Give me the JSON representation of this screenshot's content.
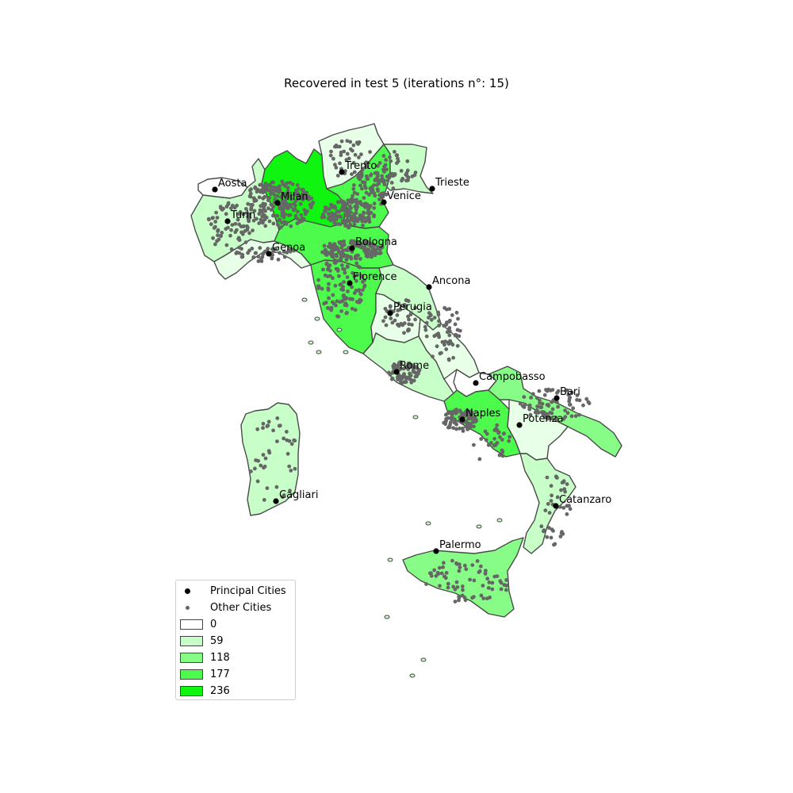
{
  "title": "Recovered in test 5 (iterations n°: 15)",
  "colors": {
    "bin0": "#ffffff",
    "bin1": "#c8fec8",
    "bin2": "#87fd87",
    "bin3": "#4cfb4c",
    "bin4": "#10f510",
    "light": "#e8ffe8",
    "principal_city": "#000000",
    "other_city": "#666666",
    "border": "#4a4a4a"
  },
  "regions": [
    {
      "name": "Aosta Valley",
      "bin": "bin0"
    },
    {
      "name": "Piedmont",
      "bin": "bin1"
    },
    {
      "name": "Lombardy",
      "bin": "bin4"
    },
    {
      "name": "Trentino",
      "bin": "light"
    },
    {
      "name": "Veneto",
      "bin": "bin3"
    },
    {
      "name": "Friuli",
      "bin": "bin1"
    },
    {
      "name": "Liguria",
      "bin": "light"
    },
    {
      "name": "Emilia-Romagna",
      "bin": "bin3"
    },
    {
      "name": "Tuscany",
      "bin": "bin3"
    },
    {
      "name": "Marche",
      "bin": "bin1"
    },
    {
      "name": "Umbria",
      "bin": "light"
    },
    {
      "name": "Lazio",
      "bin": "bin1"
    },
    {
      "name": "Abruzzo",
      "bin": "light"
    },
    {
      "name": "Molise",
      "bin": "bin0"
    },
    {
      "name": "Campania",
      "bin": "bin3"
    },
    {
      "name": "Apulia",
      "bin": "bin2"
    },
    {
      "name": "Basilicata",
      "bin": "light"
    },
    {
      "name": "Calabria",
      "bin": "bin1"
    },
    {
      "name": "Sicily",
      "bin": "bin2"
    },
    {
      "name": "Sardinia",
      "bin": "bin1"
    }
  ],
  "principal_cities": [
    {
      "name": "Aosta"
    },
    {
      "name": "Trento"
    },
    {
      "name": "Trieste"
    },
    {
      "name": "Milan"
    },
    {
      "name": "Venice"
    },
    {
      "name": "Turin"
    },
    {
      "name": "Bologna"
    },
    {
      "name": "Genoa"
    },
    {
      "name": "Ancona"
    },
    {
      "name": "Florence"
    },
    {
      "name": "Perugia"
    },
    {
      "name": "Rome"
    },
    {
      "name": "Campobasso"
    },
    {
      "name": "Bari"
    },
    {
      "name": "Naples"
    },
    {
      "name": "Potenza"
    },
    {
      "name": "Cagliari"
    },
    {
      "name": "Catanzaro"
    },
    {
      "name": "Palermo"
    }
  ],
  "legend": {
    "principal_label": "Principal Cities",
    "other_label": "Other Cities",
    "bins": [
      {
        "label": "0",
        "color": "#ffffff"
      },
      {
        "label": "59",
        "color": "#c8fec8"
      },
      {
        "label": "118",
        "color": "#87fd87"
      },
      {
        "label": "177",
        "color": "#4cfb4c"
      },
      {
        "label": "236",
        "color": "#10f510"
      }
    ]
  }
}
